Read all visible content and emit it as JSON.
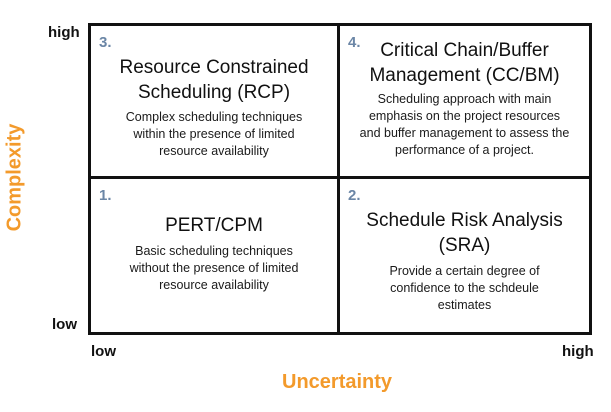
{
  "colors": {
    "axis_title": "#f39a2b",
    "quadrant_number": "#6b86a6",
    "border": "#111111"
  },
  "axes": {
    "y_title": "Complexity",
    "x_title": "Uncertainty",
    "y_high": "high",
    "y_low": "low",
    "x_low": "low",
    "x_high": "high"
  },
  "quadrants": [
    {
      "number": "3.",
      "title_lines": [
        "Resource Constrained",
        "Scheduling (RCP)"
      ],
      "desc_lines": [
        "Complex scheduling techniques",
        "within the presence of limited",
        "resource availability"
      ]
    },
    {
      "number": "4.",
      "title_lines": [
        "Critical Chain/Buffer",
        "Management (CC/BM)"
      ],
      "desc_lines": [
        "Scheduling approach with main",
        "emphasis on the project resources",
        "and buffer management to assess the",
        "performance of a project."
      ]
    },
    {
      "number": "1.",
      "title_lines": [
        "PERT/CPM"
      ],
      "desc_lines": [
        "Basic scheduling techniques",
        "without the presence of limited",
        "resource availability"
      ]
    },
    {
      "number": "2.",
      "title_lines": [
        "Schedule Risk Analysis",
        "(SRA)"
      ],
      "desc_lines": [
        "Provide a certain degree of",
        "confidence to the schdeule",
        "estimates"
      ]
    }
  ]
}
